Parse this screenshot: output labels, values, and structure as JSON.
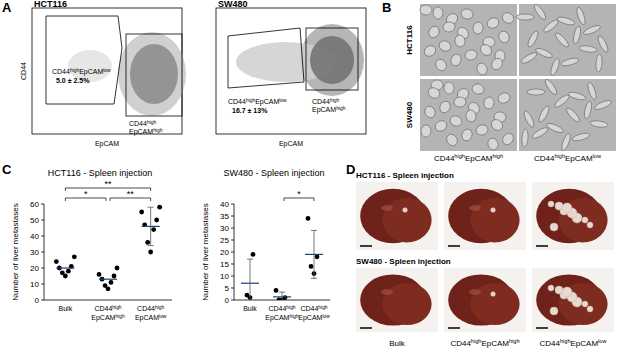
{
  "panel_labels": [
    "A",
    "B",
    "C",
    "D"
  ],
  "flow_cytometry": [
    {
      "title": "HCT116",
      "x_label": "EpCAM",
      "y_label": "CD44",
      "gates": [
        {
          "label": [
            "CD44",
            "high",
            "EpCAM",
            "low"
          ],
          "percent": "5.0 ± 2.5%"
        },
        {
          "label": [
            "CD44",
            "high",
            "EpCAM",
            "high"
          ]
        }
      ]
    },
    {
      "title": "SW480",
      "x_label": "EpCAM",
      "gates": [
        {
          "label": [
            "CD44",
            "high",
            "EpCAM",
            "low"
          ],
          "percent": "16.7 ± 13%"
        },
        {
          "label": [
            "CD44",
            "high",
            "EpCAM",
            "high"
          ]
        }
      ]
    }
  ],
  "microscopy": {
    "rows": [
      "HCT116",
      "SW480"
    ],
    "columns": [
      [
        "CD44",
        "high",
        "EpCAM",
        "high"
      ],
      [
        "CD44",
        "high",
        "EpCAM",
        "low"
      ]
    ]
  },
  "chart_data": [
    {
      "type": "dotplot",
      "title": "HCT116 - Spleen injection",
      "y_label": "Number of liver metastases",
      "categories": [
        "Bulk",
        [
          "CD44",
          "high",
          "EpCAM",
          "high"
        ],
        [
          "CD44",
          "high",
          "EpCAM",
          "low"
        ]
      ],
      "values": [
        [
          15,
          17,
          18,
          20,
          21,
          24,
          27
        ],
        [
          7,
          9,
          11,
          13,
          15,
          16,
          20
        ],
        [
          30,
          36,
          44,
          47,
          50,
          55,
          58
        ]
      ],
      "means": [
        20,
        13,
        46
      ],
      "errors": [
        null,
        null,
        12
      ],
      "color": "#000000",
      "ylim": [
        0,
        60
      ],
      "yticks": [
        0,
        10,
        20,
        30,
        40,
        50,
        60
      ],
      "grid": false,
      "significance": [
        {
          "groups": [
            0,
            1
          ],
          "label": "*"
        },
        {
          "groups": [
            1,
            2
          ],
          "label": "**"
        },
        {
          "groups": [
            0,
            2
          ],
          "label": "**"
        }
      ]
    },
    {
      "type": "dotplot",
      "title": "SW480 - Spleen injection",
      "y_label": "Number of liver metastases",
      "categories": [
        "Bulk",
        [
          "CD44",
          "high",
          "EpCAM",
          "high"
        ],
        [
          "CD44",
          "high",
          "EpCAM",
          "low"
        ]
      ],
      "values": [
        [
          1,
          2,
          19
        ],
        [
          0,
          0,
          1,
          4
        ],
        [
          11,
          14,
          18,
          34
        ]
      ],
      "means": [
        7,
        1.3,
        19
      ],
      "errors": [
        10,
        2,
        10
      ],
      "color": "#000000",
      "ylim": [
        0,
        40
      ],
      "yticks": [
        0,
        5,
        10,
        15,
        20,
        25,
        30,
        35,
        40
      ],
      "grid": false,
      "significance": [
        {
          "groups": [
            1,
            2
          ],
          "label": "*"
        }
      ]
    }
  ],
  "liver_images": {
    "rows": [
      "HCT116 - Spleen injection",
      "SW480 - Spleen injection"
    ],
    "columns": [
      "Bulk",
      [
        "CD44",
        "high",
        "EpCAM",
        "high"
      ],
      [
        "CD44",
        "high",
        "EpCAM",
        "low"
      ]
    ]
  }
}
